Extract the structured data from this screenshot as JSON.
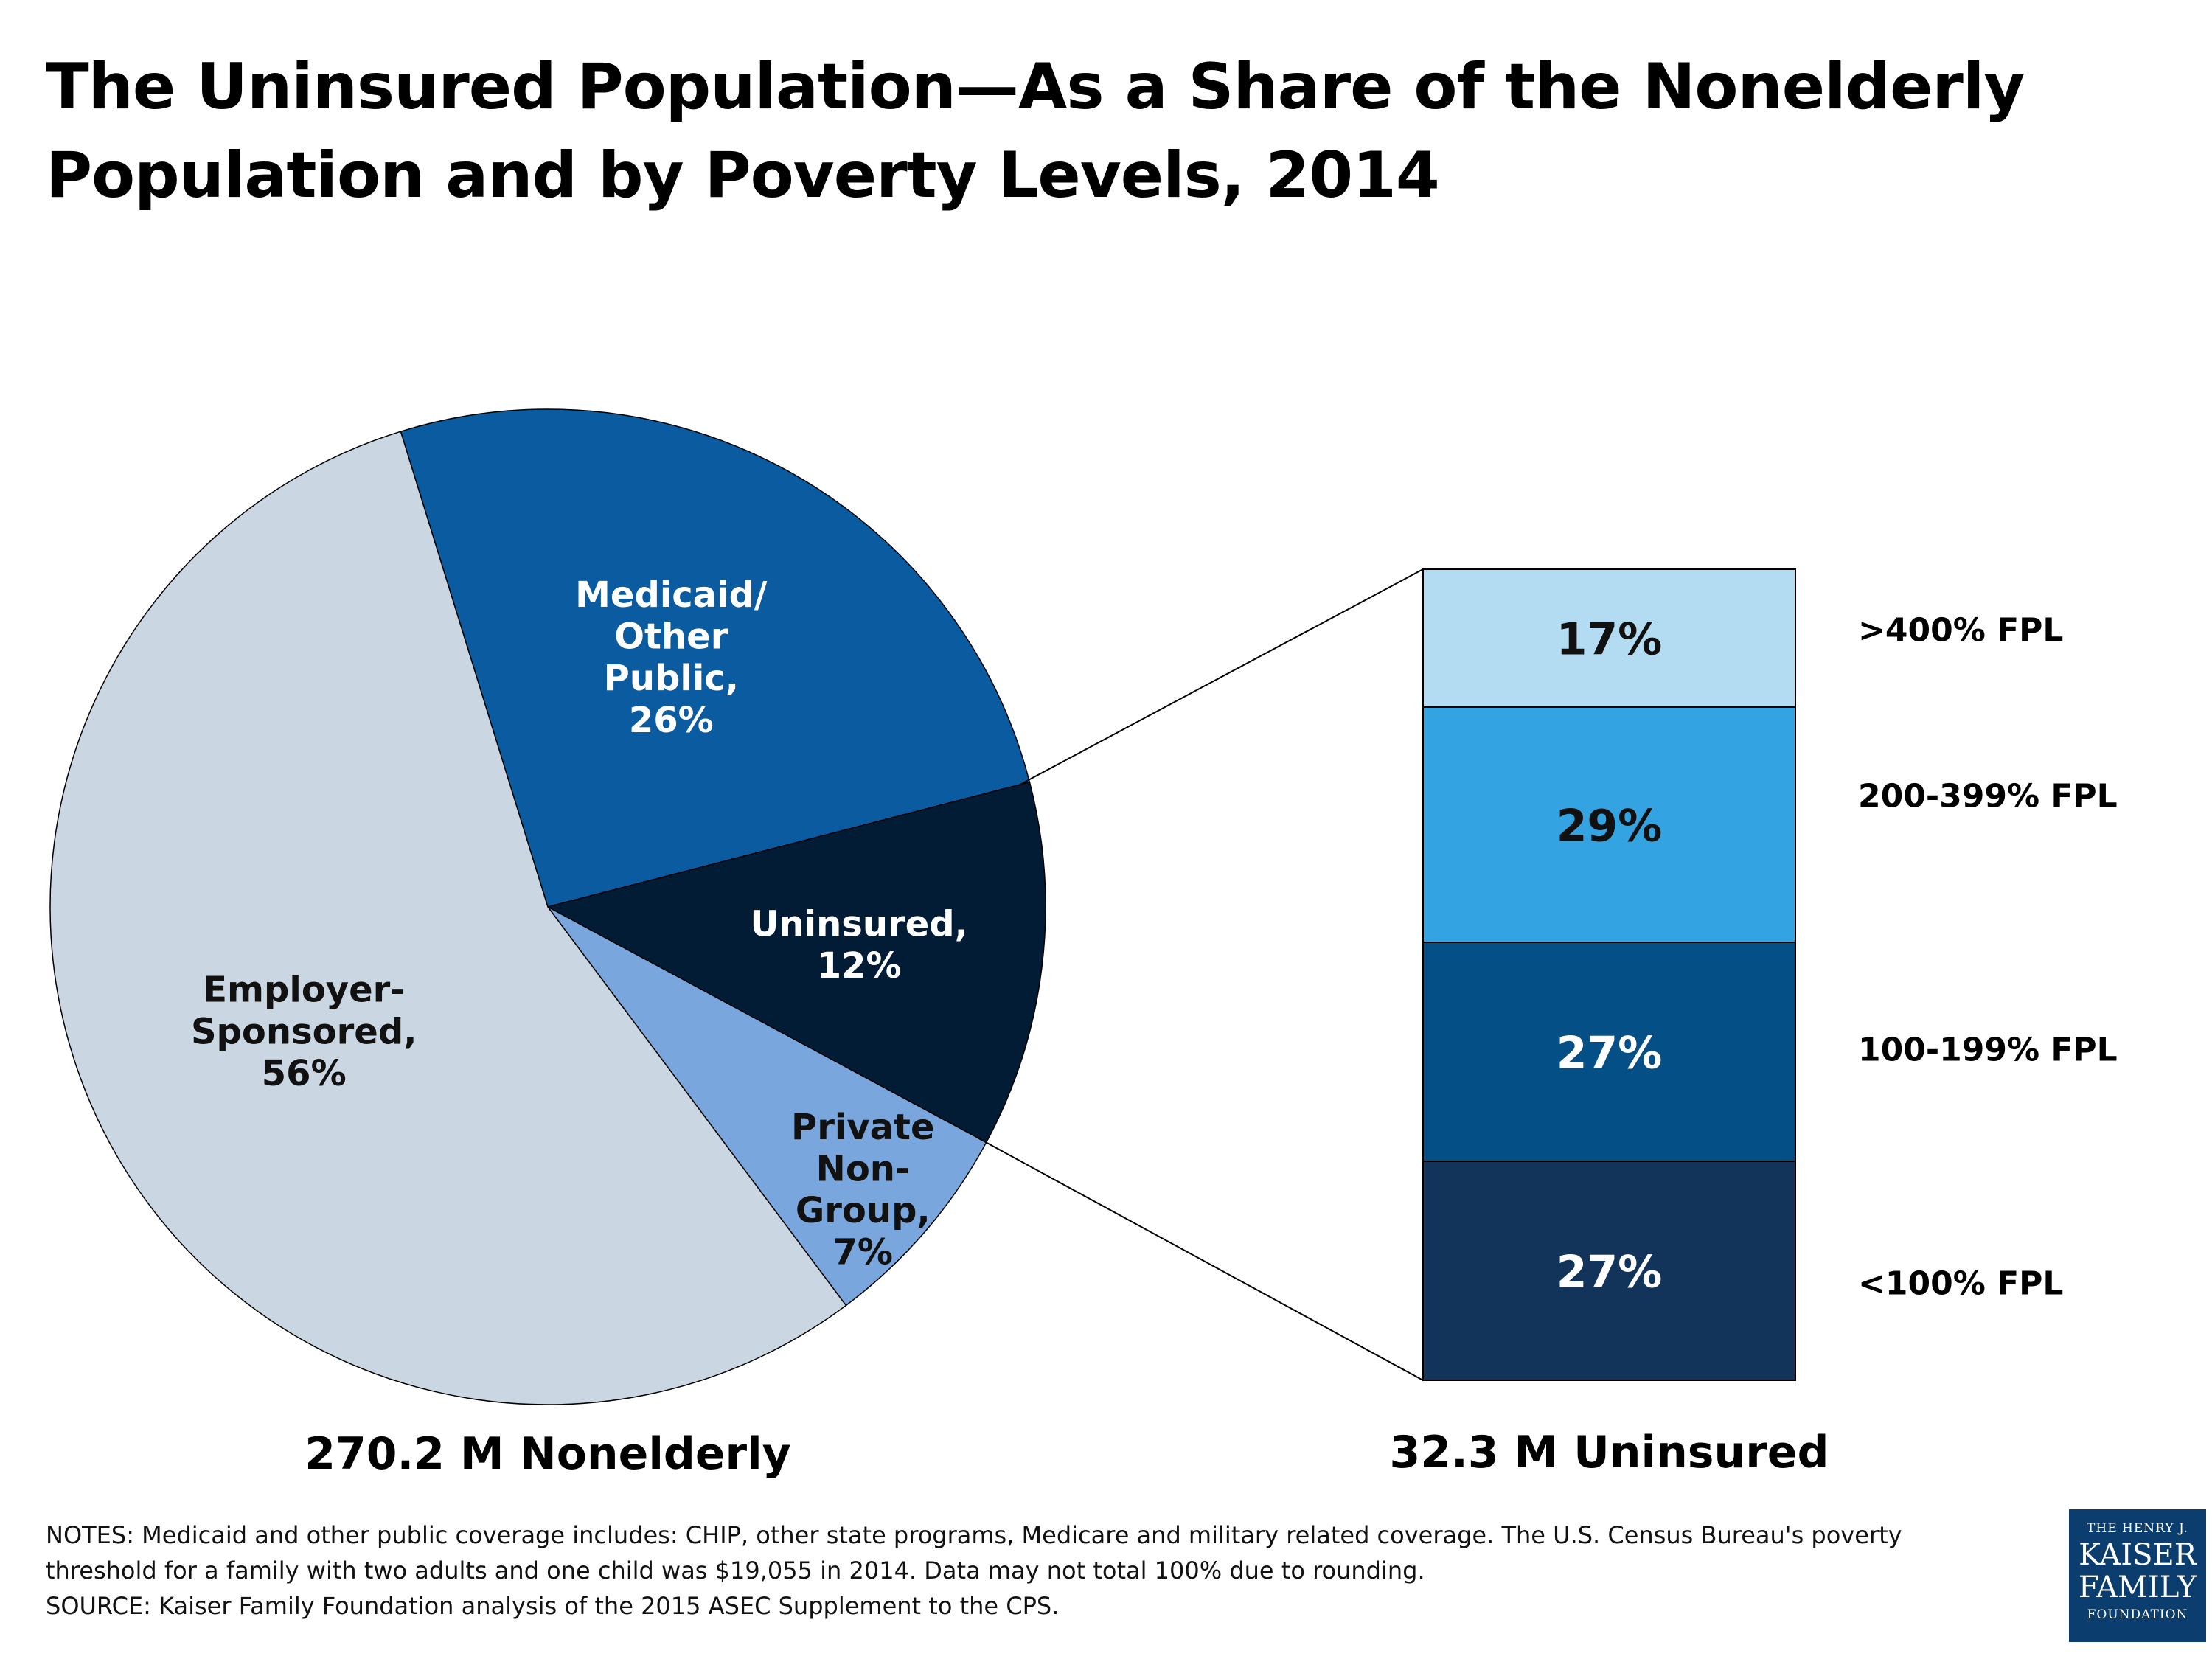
{
  "title_lines": [
    "The Uninsured Population—As a Share of the Nonelderly",
    "Population and by Poverty Levels, 2014"
  ],
  "chart_data": [
    {
      "type": "pie",
      "caption": "270.2 M Nonelderly",
      "slices": [
        {
          "label_lines": [
            "Medicaid/",
            "Other",
            "Public,",
            "26%"
          ],
          "value": 26,
          "color": "#0b5ba1",
          "text_color": "#ffffff"
        },
        {
          "label_lines": [
            "Uninsured,",
            "12%"
          ],
          "value": 12,
          "color": "#021c36",
          "text_color": "#ffffff"
        },
        {
          "label_lines": [
            "Private",
            "Non-",
            "Group,",
            "7%"
          ],
          "value": 7,
          "color": "#79a6dc",
          "text_color": "#111111"
        },
        {
          "label_lines": [
            "Employer-",
            "Sponsored,",
            "56%"
          ],
          "value": 56,
          "color": "#cad6e2",
          "text_color": "#111111"
        }
      ]
    },
    {
      "type": "bar",
      "stacked": true,
      "caption": "32.3 M Uninsured",
      "categories": [
        ">400% FPL",
        "200-399% FPL",
        "100-199% FPL",
        "<100% FPL"
      ],
      "values": [
        17,
        29,
        27,
        27
      ],
      "labels": [
        "17%",
        "29%",
        "27%",
        "27%"
      ],
      "colors": [
        "#b3dcf2",
        "#33a3e1",
        "#034f86",
        "#12345b"
      ],
      "text_colors": [
        "#111111",
        "#111111",
        "#ffffff",
        "#ffffff"
      ]
    }
  ],
  "notes": [
    "NOTES: Medicaid and other public coverage includes: CHIP, other state programs, Medicare and military related coverage. The U.S. Census Bureau's poverty",
    "threshold for a family with two adults and one child was $19,055 in 2014. Data may not total 100% due to rounding.",
    "SOURCE: Kaiser Family Foundation analysis of the 2015 ASEC Supplement to the CPS."
  ],
  "logo": {
    "line1": "THE HENRY J.",
    "line2": "KAISER",
    "line3": "FAMILY",
    "line4": "FOUNDATION"
  }
}
